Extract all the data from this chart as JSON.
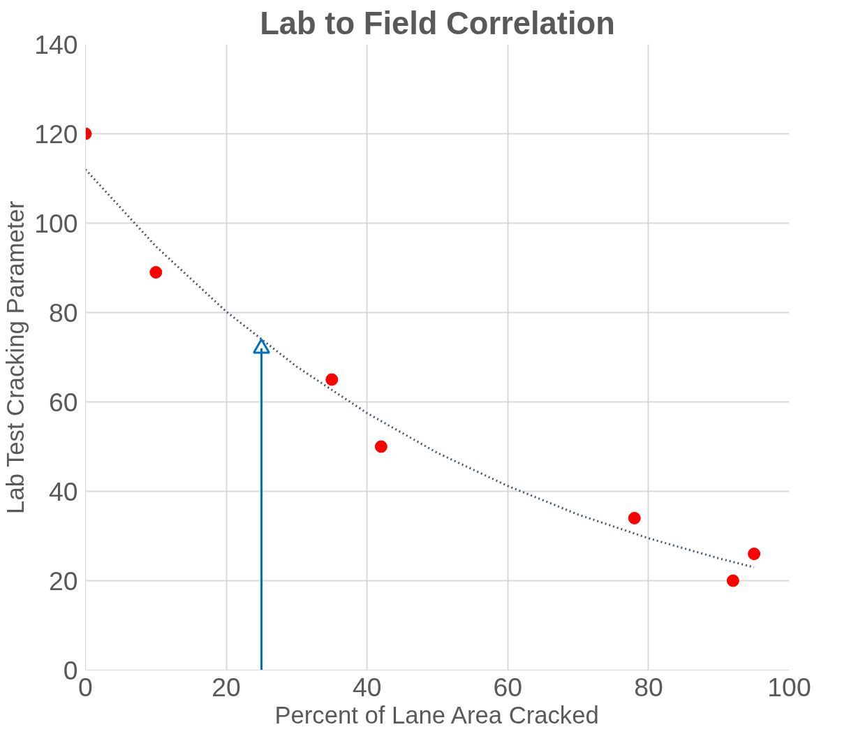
{
  "chart_data": {
    "type": "scatter",
    "title": "Lab to Field Correlation",
    "xlabel": "Percent of Lane Area Cracked",
    "ylabel": "Lab Test Cracking Parameter",
    "x": [
      0,
      10,
      35,
      42,
      78,
      92,
      95
    ],
    "series": [
      {
        "color": "#ff0000",
        "marker": "circle",
        "values": [
          120,
          89,
          65,
          50,
          34,
          20,
          26
        ]
      },
      {
        "type": "line",
        "color": "#0070c0",
        "line_style": "solid",
        "marker": "triangle",
        "x": [
          25,
          25
        ],
        "values": [
          0,
          72
        ]
      },
      {
        "type": "line",
        "color": "#44546a",
        "line_style": "dotted",
        "marker": "none",
        "x": [
          0,
          10,
          20,
          30,
          40,
          50,
          60,
          70,
          80,
          90,
          95
        ],
        "values": [
          112,
          94.8,
          80.2,
          67.9,
          57.5,
          48.6,
          41.2,
          34.8,
          29.5,
          25,
          23
        ]
      }
    ],
    "xlim": [
      0,
      100
    ],
    "ylim": [
      0,
      140
    ],
    "xticks": [
      0,
      20,
      40,
      60,
      80,
      100
    ],
    "yticks": [
      0,
      20,
      40,
      60,
      80,
      100,
      120,
      140
    ],
    "grid": true
  }
}
